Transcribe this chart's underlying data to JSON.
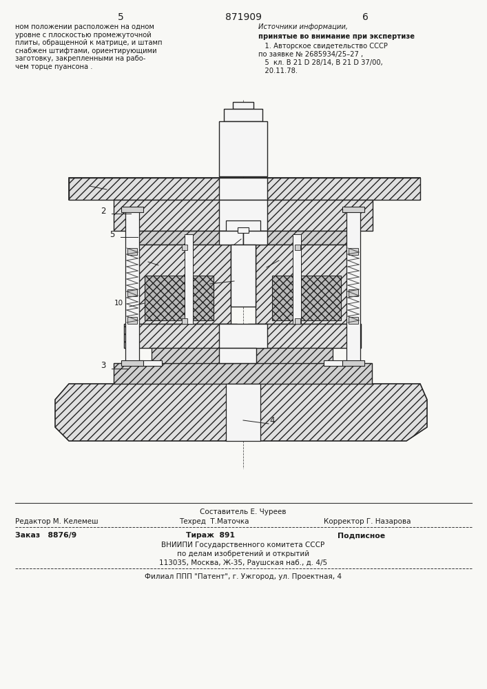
{
  "page_number_left": "5",
  "page_number_center": "871909",
  "page_number_right": "6",
  "col_left_text": "ном положении расположен на одном\nуровне с плоскостью промежуточной\nплиты, обращенной к матрице, и штамп\nснабжен штифтами, ориентирующими\nзаготовку, закрепленными на рабо-\nчем торце пуансона .",
  "col_right_title": "Источники информации,",
  "col_right_subtitle": "принятые во внимание при экспертизе",
  "col_right_ref1": "   1. Авторское свидетельство СССР",
  "col_right_ref2": "по заявке № 2685934/25–27 ,",
  "col_right_ref3": "   5  кл. В 21 D 28/14, В 21 D 37/00,",
  "col_right_ref4": "   20.11.78.",
  "footer_sestavitel": "Составитель Е. Чуреев",
  "footer_redaktor": "Редактор М. Келемеш",
  "footer_tekhred": "Техред  Т.Маточка",
  "footer_korrektor": "Корректор Г. Назарова",
  "footer_zakaz": "Заказ   8876/9",
  "footer_tirazh": "Тираж  891",
  "footer_podpisnoe": "Подписное",
  "footer_org1": "ВНИИПИ Государственного комитета СССР",
  "footer_org2": "по делам изобретений и открытий",
  "footer_org3": "113035, Москва, Ж-35, Раушская наб., д. 4/5",
  "footer_filial": "Филиал ППП \"Патент\", г. Ужгород, ул. Проектная, 4",
  "bg_color": "#f8f8f5",
  "text_color": "#1a1a1a",
  "line_color": "#222222",
  "hatch_color": "#333333",
  "fill_light": "#e8e8e8",
  "fill_white": "#ffffff"
}
